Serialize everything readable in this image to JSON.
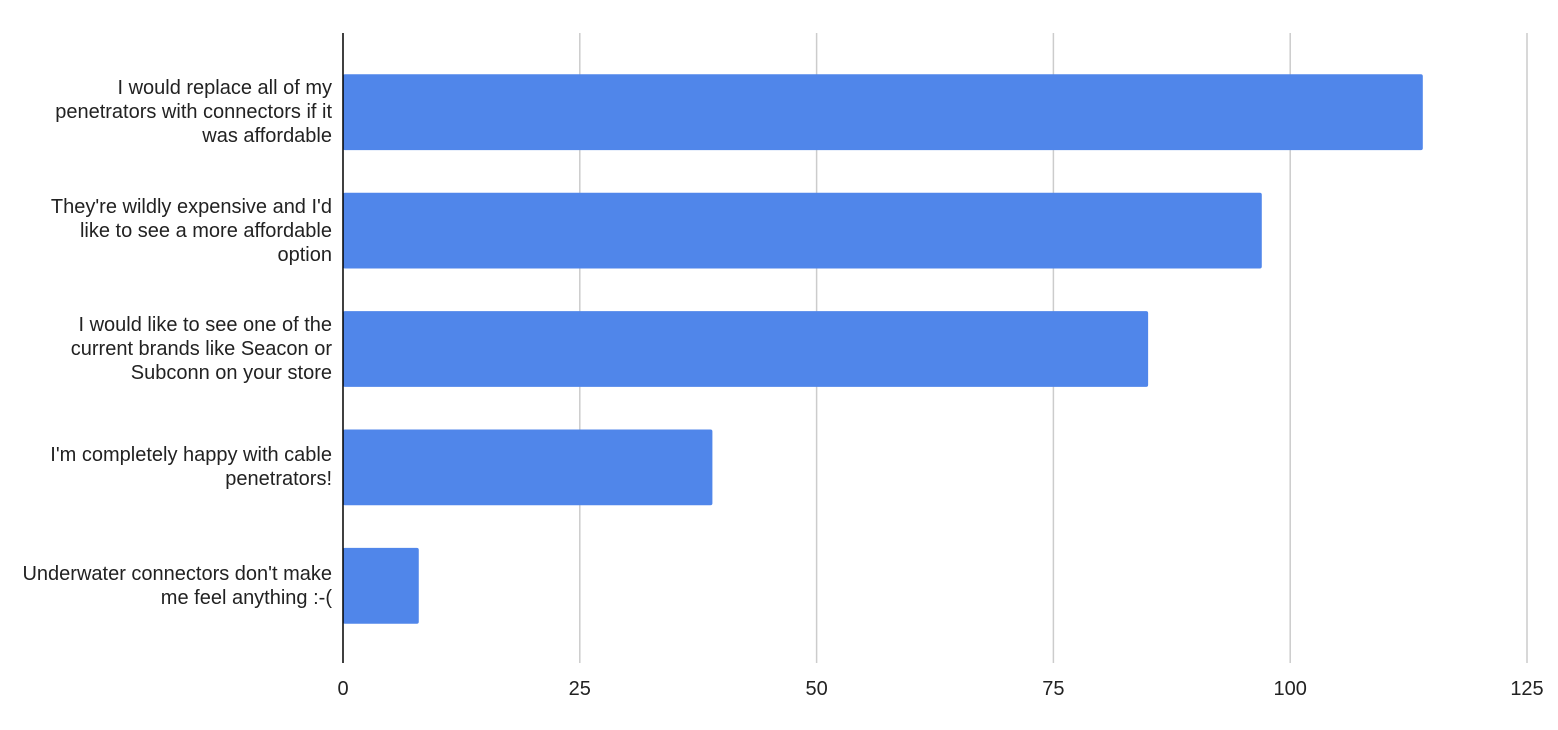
{
  "chart_data": {
    "type": "bar",
    "orientation": "horizontal",
    "categories": [
      "I would replace all of my penetrators with connectors if it was affordable",
      "They're wildly expensive and I'd like to see a more affordable option",
      "I would like to see one of the current brands like Seacon or Subconn on your store",
      "I'm completely happy with cable penetrators!",
      "Underwater connectors don't make me feel anything :-("
    ],
    "values": [
      114,
      97,
      85,
      39,
      8
    ],
    "color": "#5086ea",
    "xlim": [
      0,
      125
    ],
    "xticks": [
      0,
      25,
      50,
      75,
      100,
      125
    ],
    "grid": true
  }
}
